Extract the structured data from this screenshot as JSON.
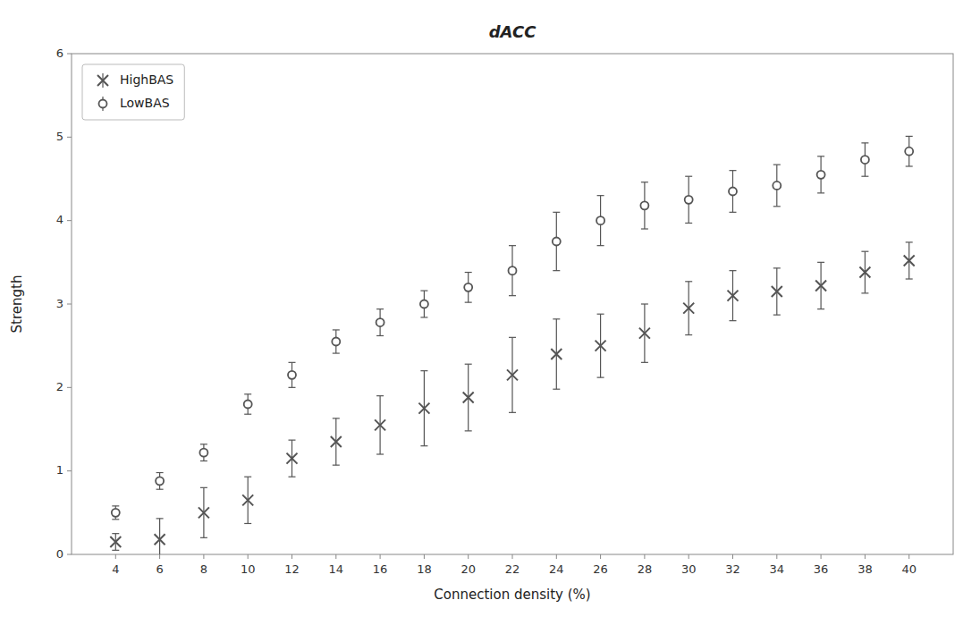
{
  "chart_data": {
    "type": "scatter",
    "title": "dACC",
    "xlabel": "Connection density (%)",
    "ylabel": "Strength",
    "x": [
      4,
      6,
      8,
      10,
      12,
      14,
      16,
      18,
      20,
      22,
      24,
      26,
      28,
      30,
      32,
      34,
      36,
      38,
      40
    ],
    "xlim": [
      2,
      42
    ],
    "xticks": [
      4,
      6,
      8,
      10,
      12,
      14,
      16,
      18,
      20,
      22,
      24,
      26,
      28,
      30,
      32,
      34,
      36,
      38,
      40
    ],
    "ylim": [
      0,
      6
    ],
    "yticks": [
      0,
      1,
      2,
      3,
      4,
      5,
      6
    ],
    "grid": false,
    "legend": "upper left",
    "series": [
      {
        "name": "HighBAS",
        "color": "#555555",
        "marker": "x",
        "values": [
          0.15,
          0.18,
          0.5,
          0.65,
          1.15,
          1.35,
          1.55,
          1.75,
          1.88,
          2.15,
          2.4,
          2.5,
          2.65,
          2.95,
          3.1,
          3.15,
          3.22,
          3.38,
          3.52
        ],
        "errors": [
          0.1,
          0.25,
          0.3,
          0.28,
          0.22,
          0.28,
          0.35,
          0.45,
          0.4,
          0.45,
          0.42,
          0.38,
          0.35,
          0.32,
          0.3,
          0.28,
          0.28,
          0.25,
          0.22
        ]
      },
      {
        "name": "LowBAS",
        "color": "#555555",
        "marker": "circle",
        "values": [
          0.5,
          0.88,
          1.22,
          1.8,
          2.15,
          2.55,
          2.78,
          3.0,
          3.2,
          3.4,
          3.75,
          4.0,
          4.18,
          4.25,
          4.35,
          4.42,
          4.55,
          4.73,
          4.83
        ],
        "errors": [
          0.08,
          0.1,
          0.1,
          0.12,
          0.15,
          0.14,
          0.16,
          0.16,
          0.18,
          0.3,
          0.35,
          0.3,
          0.28,
          0.28,
          0.25,
          0.25,
          0.22,
          0.2,
          0.18
        ]
      }
    ]
  }
}
